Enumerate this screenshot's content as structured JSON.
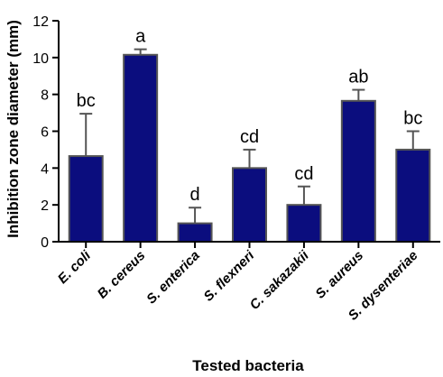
{
  "chart_data": {
    "type": "bar",
    "title": "",
    "xlabel": "Tested bacteria",
    "ylabel": "Inhibition zone diameter (mm)",
    "ylim": [
      0,
      12
    ],
    "yticks": [
      0,
      2,
      4,
      6,
      8,
      10,
      12
    ],
    "categories": [
      "E. coli",
      "B. cereus",
      "S. enterica",
      "S. flexneri",
      "C. sakazakii",
      "S. aureus",
      "S. dysenteriae"
    ],
    "values": [
      4.65,
      10.15,
      1.0,
      4.0,
      2.0,
      7.65,
      5.0
    ],
    "errors": [
      2.3,
      0.3,
      0.85,
      1.0,
      1.0,
      0.6,
      1.0
    ],
    "significance_labels": [
      "bc",
      "a",
      "d",
      "cd",
      "cd",
      "ab",
      "bc"
    ],
    "colors": {
      "bar_fill": "#0b0d7e",
      "bar_edge": "#555555",
      "axis": "#000000"
    },
    "grid": false,
    "legend": "none"
  }
}
